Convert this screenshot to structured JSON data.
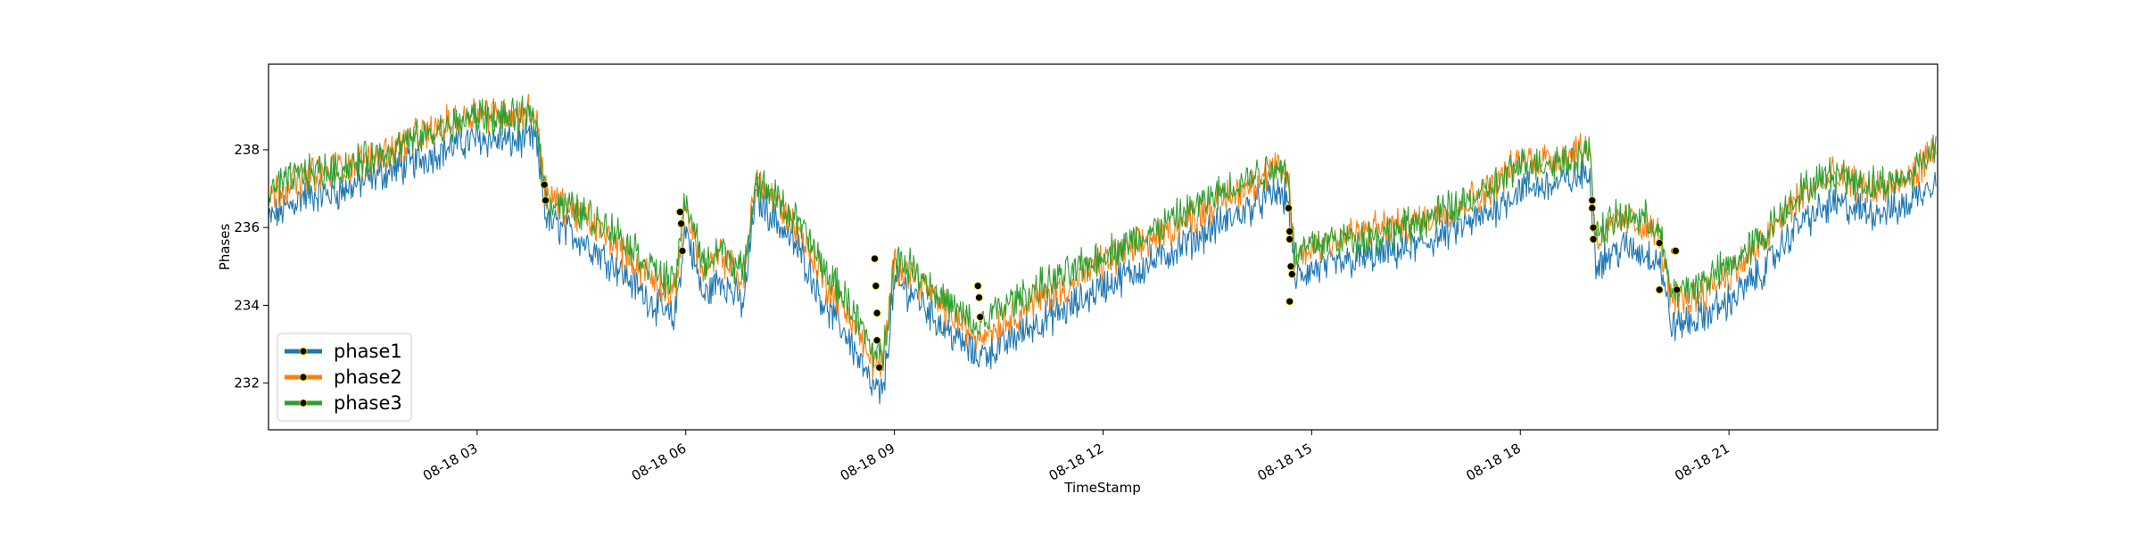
{
  "chart_data": {
    "type": "line",
    "title": "",
    "xlabel": "TimeStamp",
    "ylabel": "Phases",
    "xlim": [
      "2023-08-18 00:00",
      "2023-08-19 00:00"
    ],
    "ylim": [
      230.8,
      240.2
    ],
    "x_ticks": [
      {
        "label": "08-18 03",
        "value": "2023-08-18 03:00"
      },
      {
        "label": "08-18 06",
        "value": "2023-08-18 06:00"
      },
      {
        "label": "08-18 09",
        "value": "2023-08-18 09:00"
      },
      {
        "label": "08-18 12",
        "value": "2023-08-18 12:00"
      },
      {
        "label": "08-18 15",
        "value": "2023-08-18 15:00"
      },
      {
        "label": "08-18 18",
        "value": "2023-08-18 18:00"
      },
      {
        "label": "08-18 21",
        "value": "2023-08-18 21:00"
      }
    ],
    "y_ticks": [
      232,
      234,
      236,
      238
    ],
    "grid": false,
    "legend_position": "lower-left",
    "markers": "black circles at anomaly points",
    "series": [
      {
        "name": "phase1",
        "color": "#1f77b4",
        "points": [
          [
            "00:00",
            236.2
          ],
          [
            "00:30",
            236.8
          ],
          [
            "01:00",
            236.9
          ],
          [
            "01:30",
            237.3
          ],
          [
            "02:00",
            237.6
          ],
          [
            "02:30",
            238.0
          ],
          [
            "03:00",
            238.3
          ],
          [
            "03:30",
            238.2
          ],
          [
            "03:50",
            238.3
          ],
          [
            "04:00",
            236.2
          ],
          [
            "04:30",
            235.7
          ],
          [
            "05:00",
            235.0
          ],
          [
            "05:30",
            234.1
          ],
          [
            "05:50",
            233.6
          ],
          [
            "06:00",
            236.0
          ],
          [
            "06:15",
            234.2
          ],
          [
            "06:30",
            234.7
          ],
          [
            "06:50",
            234.0
          ],
          [
            "07:00",
            236.8
          ],
          [
            "07:20",
            236.1
          ],
          [
            "07:40",
            235.3
          ],
          [
            "08:00",
            234.0
          ],
          [
            "08:20",
            233.2
          ],
          [
            "08:40",
            231.9
          ],
          [
            "08:50",
            231.7
          ],
          [
            "09:00",
            234.6
          ],
          [
            "09:20",
            234.2
          ],
          [
            "09:40",
            233.5
          ],
          [
            "10:00",
            233.0
          ],
          [
            "10:10",
            232.7
          ],
          [
            "10:30",
            232.9
          ],
          [
            "11:00",
            233.5
          ],
          [
            "11:30",
            233.9
          ],
          [
            "12:00",
            234.5
          ],
          [
            "12:30",
            234.9
          ],
          [
            "13:00",
            235.4
          ],
          [
            "13:30",
            235.9
          ],
          [
            "14:00",
            236.4
          ],
          [
            "14:30",
            236.9
          ],
          [
            "14:40",
            236.7
          ],
          [
            "14:45",
            234.7
          ],
          [
            "15:00",
            234.9
          ],
          [
            "15:30",
            235.1
          ],
          [
            "16:00",
            235.3
          ],
          [
            "16:30",
            235.5
          ],
          [
            "17:00",
            235.9
          ],
          [
            "17:30",
            236.3
          ],
          [
            "18:00",
            237.0
          ],
          [
            "18:30",
            237.1
          ],
          [
            "19:00",
            237.4
          ],
          [
            "19:05",
            235.1
          ],
          [
            "19:30",
            235.5
          ],
          [
            "19:50",
            235.3
          ],
          [
            "20:00",
            235.2
          ],
          [
            "20:10",
            233.5
          ],
          [
            "20:30",
            233.6
          ],
          [
            "21:00",
            234.1
          ],
          [
            "21:30",
            234.9
          ],
          [
            "22:00",
            236.1
          ],
          [
            "22:30",
            236.6
          ],
          [
            "23:00",
            236.4
          ],
          [
            "23:30",
            236.5
          ],
          [
            "23:59",
            237.3
          ]
        ]
      },
      {
        "name": "phase2",
        "color": "#ff7f0e",
        "points": [
          [
            "00:00",
            236.8
          ],
          [
            "00:30",
            237.3
          ],
          [
            "01:00",
            237.5
          ],
          [
            "01:30",
            237.8
          ],
          [
            "02:00",
            238.2
          ],
          [
            "02:30",
            238.6
          ],
          [
            "03:00",
            239.0
          ],
          [
            "03:30",
            238.9
          ],
          [
            "03:50",
            239.0
          ],
          [
            "04:00",
            236.8
          ],
          [
            "04:30",
            236.3
          ],
          [
            "05:00",
            235.6
          ],
          [
            "05:30",
            234.7
          ],
          [
            "05:50",
            234.2
          ],
          [
            "06:00",
            236.6
          ],
          [
            "06:15",
            234.8
          ],
          [
            "06:30",
            235.3
          ],
          [
            "06:50",
            234.6
          ],
          [
            "07:00",
            237.3
          ],
          [
            "07:20",
            236.6
          ],
          [
            "07:40",
            235.8
          ],
          [
            "08:00",
            234.6
          ],
          [
            "08:20",
            233.8
          ],
          [
            "08:40",
            232.6
          ],
          [
            "08:50",
            232.4
          ],
          [
            "09:00",
            235.1
          ],
          [
            "09:20",
            234.7
          ],
          [
            "09:40",
            234.0
          ],
          [
            "10:00",
            233.5
          ],
          [
            "10:10",
            233.2
          ],
          [
            "10:30",
            233.5
          ],
          [
            "11:00",
            234.1
          ],
          [
            "11:30",
            234.5
          ],
          [
            "12:00",
            235.1
          ],
          [
            "12:30",
            235.5
          ],
          [
            "13:00",
            236.0
          ],
          [
            "13:30",
            236.5
          ],
          [
            "14:00",
            237.0
          ],
          [
            "14:30",
            237.5
          ],
          [
            "14:40",
            237.3
          ],
          [
            "14:45",
            235.2
          ],
          [
            "15:00",
            235.5
          ],
          [
            "15:30",
            235.8
          ],
          [
            "16:00",
            236.0
          ],
          [
            "16:30",
            236.1
          ],
          [
            "17:00",
            236.5
          ],
          [
            "17:30",
            236.9
          ],
          [
            "18:00",
            237.7
          ],
          [
            "18:30",
            237.8
          ],
          [
            "19:00",
            238.1
          ],
          [
            "19:05",
            235.7
          ],
          [
            "19:30",
            236.2
          ],
          [
            "19:50",
            236.0
          ],
          [
            "20:00",
            235.8
          ],
          [
            "20:10",
            234.1
          ],
          [
            "20:30",
            234.2
          ],
          [
            "21:00",
            234.8
          ],
          [
            "21:30",
            235.6
          ],
          [
            "22:00",
            236.8
          ],
          [
            "22:30",
            237.3
          ],
          [
            "23:00",
            237.0
          ],
          [
            "23:30",
            237.1
          ],
          [
            "23:59",
            238.0
          ]
        ]
      },
      {
        "name": "phase3",
        "color": "#2ca02c",
        "points": [
          [
            "00:00",
            236.9
          ],
          [
            "00:30",
            237.4
          ],
          [
            "01:00",
            237.5
          ],
          [
            "01:30",
            237.8
          ],
          [
            "02:00",
            238.2
          ],
          [
            "02:30",
            238.5
          ],
          [
            "03:00",
            238.9
          ],
          [
            "03:30",
            238.8
          ],
          [
            "03:50",
            238.9
          ],
          [
            "04:00",
            236.7
          ],
          [
            "04:30",
            236.4
          ],
          [
            "05:00",
            235.9
          ],
          [
            "05:30",
            235.0
          ],
          [
            "05:50",
            234.5
          ],
          [
            "06:00",
            236.8
          ],
          [
            "06:15",
            235.0
          ],
          [
            "06:30",
            235.5
          ],
          [
            "06:50",
            234.8
          ],
          [
            "07:00",
            237.2
          ],
          [
            "07:20",
            236.7
          ],
          [
            "07:40",
            236.0
          ],
          [
            "08:00",
            234.9
          ],
          [
            "08:20",
            234.1
          ],
          [
            "08:40",
            232.9
          ],
          [
            "08:50",
            232.6
          ],
          [
            "09:00",
            235.2
          ],
          [
            "09:20",
            234.9
          ],
          [
            "09:40",
            234.2
          ],
          [
            "10:00",
            233.7
          ],
          [
            "10:10",
            233.4
          ],
          [
            "10:30",
            233.9
          ],
          [
            "11:00",
            234.4
          ],
          [
            "11:30",
            234.8
          ],
          [
            "12:00",
            235.3
          ],
          [
            "12:30",
            235.7
          ],
          [
            "13:00",
            236.2
          ],
          [
            "13:30",
            236.7
          ],
          [
            "14:00",
            237.2
          ],
          [
            "14:30",
            237.6
          ],
          [
            "14:40",
            237.4
          ],
          [
            "14:45",
            235.3
          ],
          [
            "15:00",
            235.6
          ],
          [
            "15:30",
            235.7
          ],
          [
            "16:00",
            235.8
          ],
          [
            "16:30",
            236.1
          ],
          [
            "17:00",
            236.5
          ],
          [
            "17:30",
            236.9
          ],
          [
            "18:00",
            237.6
          ],
          [
            "18:30",
            237.7
          ],
          [
            "19:00",
            237.9
          ],
          [
            "19:05",
            235.9
          ],
          [
            "19:30",
            236.3
          ],
          [
            "19:50",
            236.2
          ],
          [
            "20:00",
            235.9
          ],
          [
            "20:10",
            234.3
          ],
          [
            "20:30",
            234.5
          ],
          [
            "21:00",
            235.0
          ],
          [
            "21:30",
            235.8
          ],
          [
            "22:00",
            236.9
          ],
          [
            "22:30",
            237.4
          ],
          [
            "23:00",
            237.1
          ],
          [
            "23:30",
            237.2
          ],
          [
            "23:59",
            238.1
          ]
        ]
      }
    ],
    "anomalies": [
      {
        "x": "03:58",
        "y": 237.1
      },
      {
        "x": "03:59",
        "y": 236.7
      },
      {
        "x": "05:55",
        "y": 236.4
      },
      {
        "x": "05:56",
        "y": 236.1
      },
      {
        "x": "05:57",
        "y": 235.4
      },
      {
        "x": "08:43",
        "y": 235.2
      },
      {
        "x": "08:44",
        "y": 234.5
      },
      {
        "x": "08:45",
        "y": 233.8
      },
      {
        "x": "08:45",
        "y": 233.1
      },
      {
        "x": "08:47",
        "y": 232.4
      },
      {
        "x": "10:12",
        "y": 234.5
      },
      {
        "x": "10:13",
        "y": 234.2
      },
      {
        "x": "10:14",
        "y": 233.7
      },
      {
        "x": "14:40",
        "y": 236.5
      },
      {
        "x": "14:41",
        "y": 235.9
      },
      {
        "x": "14:41",
        "y": 235.7
      },
      {
        "x": "14:42",
        "y": 235.0
      },
      {
        "x": "14:43",
        "y": 234.8
      },
      {
        "x": "14:41",
        "y": 234.1
      },
      {
        "x": "19:02",
        "y": 236.7
      },
      {
        "x": "19:02",
        "y": 236.5
      },
      {
        "x": "19:03",
        "y": 236.0
      },
      {
        "x": "19:03",
        "y": 235.7
      },
      {
        "x": "20:00",
        "y": 235.6
      },
      {
        "x": "20:00",
        "y": 234.4
      },
      {
        "x": "20:13",
        "y": 235.4
      },
      {
        "x": "20:14",
        "y": 235.4
      },
      {
        "x": "20:15",
        "y": 234.4
      }
    ]
  }
}
